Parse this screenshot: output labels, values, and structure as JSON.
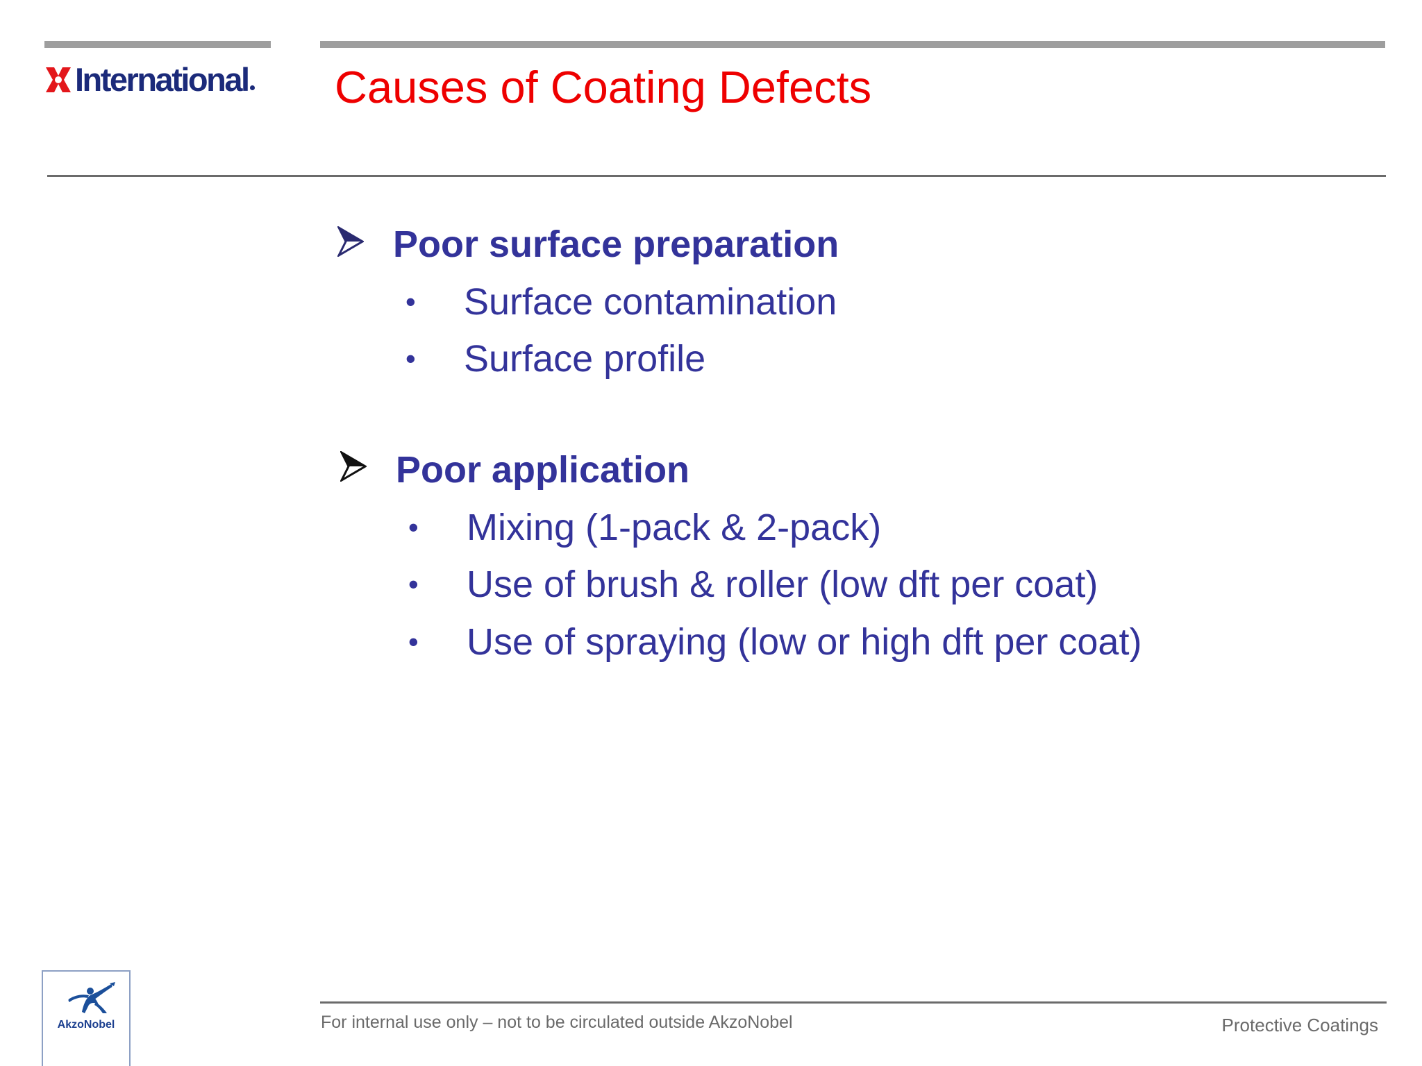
{
  "logo": {
    "brand": "International",
    "mark_color": "#e3171b",
    "text_color": "#1b2a7a"
  },
  "slide": {
    "title": "Causes of Coating Defects",
    "title_color": "#ee0000",
    "text_color": "#33339a",
    "sections": [
      {
        "heading": "Poor surface preparation",
        "icon": "arrow-bullet-icon",
        "bullets": [
          "Surface contamination",
          "Surface profile"
        ]
      },
      {
        "heading": "Poor application",
        "icon": "arrow-bullet-icon",
        "bullets": [
          "Mixing (1-pack & 2-pack)",
          "Use of brush & roller (low dft per coat)",
          "Use of spraying (low or high dft per coat)"
        ]
      }
    ],
    "bullet_glyph": "•"
  },
  "footer": {
    "left_text": "For internal use only – not to be circulated outside AkzoNobel",
    "right_text": "Protective Coatings",
    "badge_label": "AkzoNobel"
  }
}
